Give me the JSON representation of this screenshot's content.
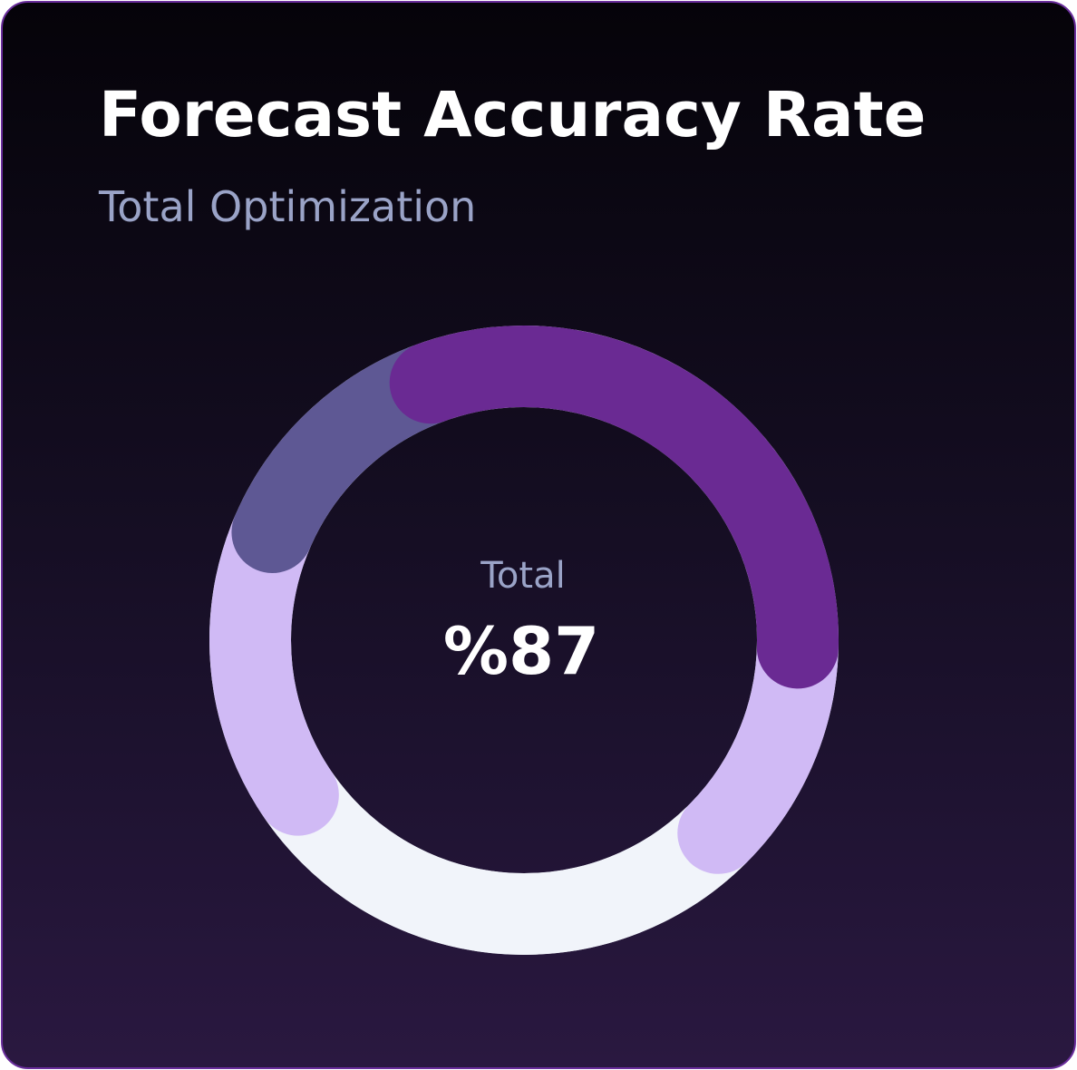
{
  "card": {
    "title": "Forecast Accuracy Rate",
    "subtitle": "Total Optimization"
  },
  "chart_data": {
    "type": "pie",
    "title": "Forecast Accuracy Rate",
    "subtitle": "Total Optimization",
    "center_label": "Total",
    "center_value": "%87",
    "segments": [
      {
        "value": 31,
        "color": "#6a2a93"
      },
      {
        "value": 12,
        "color": "#d0baf5"
      },
      {
        "value": 28,
        "color": "#f1f4fa"
      },
      {
        "value": 16,
        "color": "#d0baf5"
      },
      {
        "value": 13,
        "color": "#5e5894"
      }
    ],
    "start_angle_deg": -20
  }
}
